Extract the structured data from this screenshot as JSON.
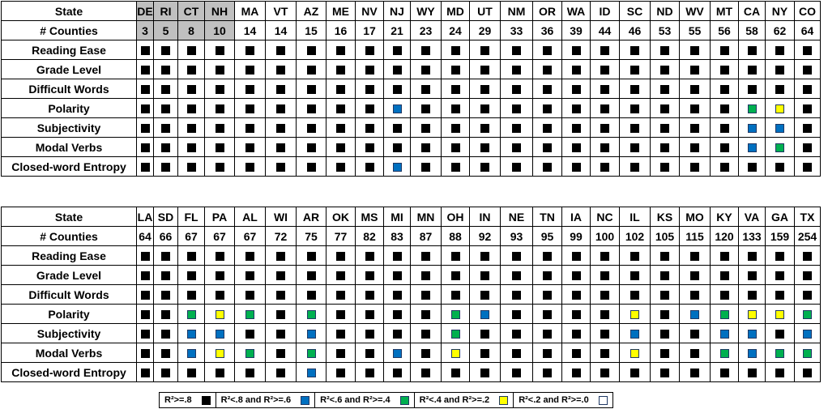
{
  "colors": {
    "black": "#000000",
    "blue": "#0070c0",
    "green": "#00b050",
    "yellow": "#ffff00",
    "white": "#ffffff"
  },
  "row_labels": [
    "State",
    "# Counties",
    "Reading Ease",
    "Grade Level",
    "Difficult Words",
    "Polarity",
    "Subjectivity",
    "Modal Verbs",
    "Closed-word Entropy"
  ],
  "top": {
    "states": [
      "DE",
      "RI",
      "CT",
      "NH",
      "MA",
      "VT",
      "AZ",
      "ME",
      "NV",
      "NJ",
      "WY",
      "MD",
      "UT",
      "NM",
      "OR",
      "WA",
      "ID",
      "SC",
      "ND",
      "WV",
      "MT",
      "CA",
      "NY",
      "CO"
    ],
    "counties": [
      "3",
      "5",
      "8",
      "10",
      "14",
      "14",
      "15",
      "16",
      "17",
      "21",
      "23",
      "24",
      "29",
      "33",
      "36",
      "39",
      "44",
      "46",
      "53",
      "55",
      "56",
      "58",
      "62",
      "64"
    ],
    "gray_count": 4,
    "metrics": [
      {
        "name": "Reading Ease",
        "cells": "KKKKKKKKKKKKKKKKKKKKKKKK"
      },
      {
        "name": "Grade Level",
        "cells": "KKKKKKKKKKKKKKKKKKKKKKKK"
      },
      {
        "name": "Difficult Words",
        "cells": "KKKKKKKKKKKKKKKKKKKKKKKK"
      },
      {
        "name": "Polarity",
        "cells": "KKKKKKKKKBKKKKKKKKKKKGYK"
      },
      {
        "name": "Subjectivity",
        "cells": "KKKKKKKKKKKKKKKKKKKKKBBK"
      },
      {
        "name": "Modal Verbs",
        "cells": "KKKKKKKKKKKKKKKKKKKKKBGK"
      },
      {
        "name": "Closed-word Entropy",
        "cells": "KKKKKKKKKBKKKKKKKKKKKKKK"
      }
    ]
  },
  "bottom": {
    "states": [
      "LA",
      "SD",
      "FL",
      "PA",
      "AL",
      "WI",
      "AR",
      "OK",
      "MS",
      "MI",
      "MN",
      "OH",
      "IN",
      "NE",
      "TN",
      "IA",
      "NC",
      "IL",
      "KS",
      "MO",
      "KY",
      "VA",
      "GA",
      "TX"
    ],
    "counties": [
      "64",
      "66",
      "67",
      "67",
      "67",
      "72",
      "75",
      "77",
      "82",
      "83",
      "87",
      "88",
      "92",
      "93",
      "95",
      "99",
      "100",
      "102",
      "105",
      "115",
      "120",
      "133",
      "159",
      "254"
    ],
    "gray_count": 0,
    "metrics": [
      {
        "name": "Reading Ease",
        "cells": "KKKKKKKKKKKKKKKKKKKKKKKK"
      },
      {
        "name": "Grade Level",
        "cells": "KKKKKKKKKKKKKKKKKKKKKKKK"
      },
      {
        "name": "Difficult Words",
        "cells": "KKKKKKKKKKKKKKKKKKKKKKKK"
      },
      {
        "name": "Polarity",
        "cells": "KKGYGKGKKKKGBKKKKYKBGYYG"
      },
      {
        "name": "Subjectivity",
        "cells": "KKBBKKBKKKKGKKKKKBKKBBKB"
      },
      {
        "name": "Modal Verbs",
        "cells": "KKBYGKGKKBKYKKKKKYKKGBGG"
      },
      {
        "name": "Closed-word Entropy",
        "cells": "KKKKKKBKKKKKKKKKKKKKKKKK"
      }
    ]
  },
  "legend": [
    {
      "label": "R²>=.8",
      "color": "black"
    },
    {
      "label": "R²<.8 and R²>=.6",
      "color": "blue"
    },
    {
      "label": "R²<.6 and R²>=.4",
      "color": "green"
    },
    {
      "label": "R²<.4 and R²>=.2",
      "color": "yellow"
    },
    {
      "label": "R²<.2 and R²>=.0",
      "color": "white"
    }
  ]
}
